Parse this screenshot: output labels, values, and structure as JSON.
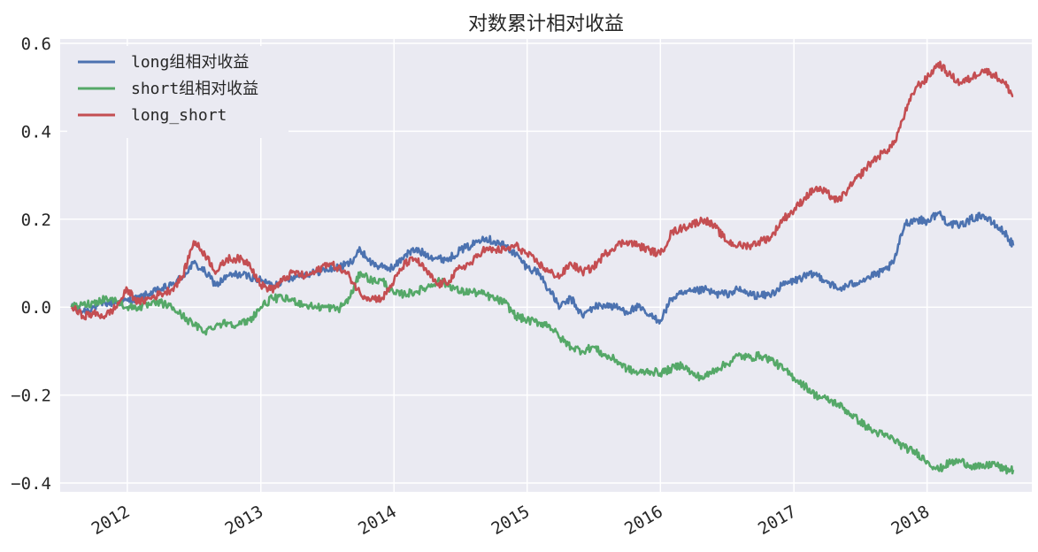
{
  "chart_data": {
    "type": "line",
    "title": "对数累计相对收益",
    "xlabel": "",
    "ylabel": "",
    "x_range": [
      "2011-07-01",
      "2018-10-15"
    ],
    "ylim": [
      -0.42,
      0.61
    ],
    "yticks": [
      0.6,
      0.4,
      0.2,
      0.0,
      -0.2,
      -0.4
    ],
    "ytick_labels": [
      "0.6",
      "0.4",
      "0.2",
      "0.0",
      "−0.2",
      "−0.4"
    ],
    "xtick_labels": [
      "2012",
      "2013",
      "2014",
      "2015",
      "2016",
      "2017",
      "2018"
    ],
    "xtick_dates": [
      "2012-01-01",
      "2013-01-01",
      "2014-01-01",
      "2015-01-01",
      "2016-01-01",
      "2017-01-01",
      "2018-01-01"
    ],
    "grid": true,
    "legend_position": "top-left",
    "series": [
      {
        "name": "long组相对收益",
        "color": "#4c72b0",
        "points": [
          [
            "2011-08-01",
            0.0
          ],
          [
            "2011-09-01",
            -0.01
          ],
          [
            "2011-10-01",
            0.0
          ],
          [
            "2011-11-01",
            0.01
          ],
          [
            "2011-12-01",
            0.01
          ],
          [
            "2012-01-01",
            0.015
          ],
          [
            "2012-02-01",
            0.02
          ],
          [
            "2012-03-01",
            0.03
          ],
          [
            "2012-04-01",
            0.04
          ],
          [
            "2012-05-01",
            0.05
          ],
          [
            "2012-06-01",
            0.07
          ],
          [
            "2012-07-01",
            0.1
          ],
          [
            "2012-08-01",
            0.08
          ],
          [
            "2012-09-01",
            0.05
          ],
          [
            "2012-10-01",
            0.07
          ],
          [
            "2012-11-01",
            0.075
          ],
          [
            "2012-12-01",
            0.07
          ],
          [
            "2013-01-01",
            0.06
          ],
          [
            "2013-02-01",
            0.05
          ],
          [
            "2013-03-01",
            0.06
          ],
          [
            "2013-04-01",
            0.07
          ],
          [
            "2013-05-01",
            0.075
          ],
          [
            "2013-06-01",
            0.08
          ],
          [
            "2013-07-01",
            0.085
          ],
          [
            "2013-08-01",
            0.09
          ],
          [
            "2013-09-01",
            0.1
          ],
          [
            "2013-10-01",
            0.13
          ],
          [
            "2013-11-01",
            0.1
          ],
          [
            "2013-12-01",
            0.09
          ],
          [
            "2014-01-01",
            0.09
          ],
          [
            "2014-02-01",
            0.12
          ],
          [
            "2014-03-01",
            0.13
          ],
          [
            "2014-04-01",
            0.12
          ],
          [
            "2014-05-01",
            0.11
          ],
          [
            "2014-06-01",
            0.11
          ],
          [
            "2014-07-01",
            0.13
          ],
          [
            "2014-08-01",
            0.14
          ],
          [
            "2014-09-01",
            0.16
          ],
          [
            "2014-10-01",
            0.15
          ],
          [
            "2014-11-01",
            0.14
          ],
          [
            "2014-12-01",
            0.12
          ],
          [
            "2015-01-01",
            0.09
          ],
          [
            "2015-02-01",
            0.08
          ],
          [
            "2015-03-01",
            0.04
          ],
          [
            "2015-04-01",
            0.0
          ],
          [
            "2015-05-01",
            0.02
          ],
          [
            "2015-06-01",
            -0.02
          ],
          [
            "2015-07-01",
            0.0
          ],
          [
            "2015-08-01",
            0.005
          ],
          [
            "2015-09-01",
            0.0
          ],
          [
            "2015-10-01",
            -0.01
          ],
          [
            "2015-11-01",
            0.0
          ],
          [
            "2015-12-01",
            -0.02
          ],
          [
            "2016-01-01",
            -0.03
          ],
          [
            "2016-02-01",
            0.02
          ],
          [
            "2016-03-01",
            0.03
          ],
          [
            "2016-04-01",
            0.035
          ],
          [
            "2016-05-01",
            0.04
          ],
          [
            "2016-06-01",
            0.03
          ],
          [
            "2016-07-01",
            0.03
          ],
          [
            "2016-08-01",
            0.04
          ],
          [
            "2016-09-01",
            0.03
          ],
          [
            "2016-10-01",
            0.025
          ],
          [
            "2016-11-01",
            0.03
          ],
          [
            "2016-12-01",
            0.05
          ],
          [
            "2017-01-01",
            0.06
          ],
          [
            "2017-02-01",
            0.07
          ],
          [
            "2017-03-01",
            0.075
          ],
          [
            "2017-04-01",
            0.06
          ],
          [
            "2017-05-01",
            0.04
          ],
          [
            "2017-06-01",
            0.05
          ],
          [
            "2017-07-01",
            0.06
          ],
          [
            "2017-08-01",
            0.07
          ],
          [
            "2017-09-01",
            0.08
          ],
          [
            "2017-10-01",
            0.1
          ],
          [
            "2017-11-01",
            0.19
          ],
          [
            "2017-12-01",
            0.2
          ],
          [
            "2018-01-01",
            0.195
          ],
          [
            "2018-02-01",
            0.215
          ],
          [
            "2018-03-01",
            0.19
          ],
          [
            "2018-04-01",
            0.185
          ],
          [
            "2018-05-01",
            0.2
          ],
          [
            "2018-06-01",
            0.21
          ],
          [
            "2018-07-01",
            0.19
          ],
          [
            "2018-08-01",
            0.17
          ],
          [
            "2018-08-25",
            0.14
          ]
        ]
      },
      {
        "name": "short组相对收益",
        "color": "#55a868",
        "points": [
          [
            "2011-08-01",
            0.0
          ],
          [
            "2011-09-01",
            0.005
          ],
          [
            "2011-10-01",
            0.01
          ],
          [
            "2011-11-01",
            0.02
          ],
          [
            "2011-12-01",
            0.015
          ],
          [
            "2012-01-01",
            0.0
          ],
          [
            "2012-02-01",
            0.0
          ],
          [
            "2012-03-01",
            0.005
          ],
          [
            "2012-04-01",
            0.01
          ],
          [
            "2012-05-01",
            0.0
          ],
          [
            "2012-06-01",
            -0.02
          ],
          [
            "2012-07-01",
            -0.04
          ],
          [
            "2012-08-01",
            -0.055
          ],
          [
            "2012-09-01",
            -0.04
          ],
          [
            "2012-10-01",
            -0.035
          ],
          [
            "2012-11-01",
            -0.04
          ],
          [
            "2012-12-01",
            -0.03
          ],
          [
            "2013-01-01",
            0.0
          ],
          [
            "2013-02-01",
            0.02
          ],
          [
            "2013-03-01",
            0.02
          ],
          [
            "2013-04-01",
            0.015
          ],
          [
            "2013-05-01",
            0.005
          ],
          [
            "2013-06-01",
            0.0
          ],
          [
            "2013-07-01",
            0.0
          ],
          [
            "2013-08-01",
            -0.005
          ],
          [
            "2013-09-01",
            0.02
          ],
          [
            "2013-10-01",
            0.08
          ],
          [
            "2013-11-01",
            0.06
          ],
          [
            "2013-12-01",
            0.06
          ],
          [
            "2014-01-01",
            0.03
          ],
          [
            "2014-02-01",
            0.03
          ],
          [
            "2014-03-01",
            0.035
          ],
          [
            "2014-04-01",
            0.045
          ],
          [
            "2014-05-01",
            0.06
          ],
          [
            "2014-06-01",
            0.05
          ],
          [
            "2014-07-01",
            0.035
          ],
          [
            "2014-08-01",
            0.035
          ],
          [
            "2014-09-01",
            0.03
          ],
          [
            "2014-10-01",
            0.02
          ],
          [
            "2014-11-01",
            0.01
          ],
          [
            "2014-12-01",
            -0.02
          ],
          [
            "2015-01-01",
            -0.03
          ],
          [
            "2015-02-01",
            -0.035
          ],
          [
            "2015-03-01",
            -0.04
          ],
          [
            "2015-04-01",
            -0.07
          ],
          [
            "2015-05-01",
            -0.09
          ],
          [
            "2015-06-01",
            -0.1
          ],
          [
            "2015-07-01",
            -0.09
          ],
          [
            "2015-08-01",
            -0.11
          ],
          [
            "2015-09-01",
            -0.12
          ],
          [
            "2015-10-01",
            -0.14
          ],
          [
            "2015-11-01",
            -0.15
          ],
          [
            "2015-12-01",
            -0.145
          ],
          [
            "2016-01-01",
            -0.15
          ],
          [
            "2016-02-01",
            -0.14
          ],
          [
            "2016-03-01",
            -0.13
          ],
          [
            "2016-04-01",
            -0.155
          ],
          [
            "2016-05-01",
            -0.16
          ],
          [
            "2016-06-01",
            -0.14
          ],
          [
            "2016-07-01",
            -0.13
          ],
          [
            "2016-08-01",
            -0.11
          ],
          [
            "2016-09-01",
            -0.115
          ],
          [
            "2016-10-01",
            -0.11
          ],
          [
            "2016-11-01",
            -0.12
          ],
          [
            "2016-12-01",
            -0.14
          ],
          [
            "2017-01-01",
            -0.16
          ],
          [
            "2017-02-01",
            -0.18
          ],
          [
            "2017-03-01",
            -0.2
          ],
          [
            "2017-04-01",
            -0.21
          ],
          [
            "2017-05-01",
            -0.22
          ],
          [
            "2017-06-01",
            -0.24
          ],
          [
            "2017-07-01",
            -0.26
          ],
          [
            "2017-08-01",
            -0.28
          ],
          [
            "2017-09-01",
            -0.29
          ],
          [
            "2017-10-01",
            -0.3
          ],
          [
            "2017-11-01",
            -0.32
          ],
          [
            "2017-12-01",
            -0.33
          ],
          [
            "2018-01-01",
            -0.35
          ],
          [
            "2018-02-01",
            -0.37
          ],
          [
            "2018-03-01",
            -0.355
          ],
          [
            "2018-04-01",
            -0.35
          ],
          [
            "2018-05-01",
            -0.36
          ],
          [
            "2018-06-01",
            -0.365
          ],
          [
            "2018-07-01",
            -0.355
          ],
          [
            "2018-08-01",
            -0.37
          ],
          [
            "2018-08-25",
            -0.37
          ]
        ]
      },
      {
        "name": "long_short",
        "color": "#c44e52",
        "points": [
          [
            "2011-08-01",
            0.0
          ],
          [
            "2011-09-01",
            -0.02
          ],
          [
            "2011-10-01",
            -0.015
          ],
          [
            "2011-11-01",
            -0.02
          ],
          [
            "2011-12-01",
            0.0
          ],
          [
            "2012-01-01",
            0.04
          ],
          [
            "2012-02-01",
            0.01
          ],
          [
            "2012-03-01",
            0.02
          ],
          [
            "2012-04-01",
            0.03
          ],
          [
            "2012-05-01",
            0.04
          ],
          [
            "2012-06-01",
            0.07
          ],
          [
            "2012-07-01",
            0.15
          ],
          [
            "2012-08-01",
            0.12
          ],
          [
            "2012-09-01",
            0.08
          ],
          [
            "2012-10-01",
            0.11
          ],
          [
            "2012-11-01",
            0.11
          ],
          [
            "2012-12-01",
            0.1
          ],
          [
            "2013-01-01",
            0.05
          ],
          [
            "2013-02-01",
            0.04
          ],
          [
            "2013-03-01",
            0.06
          ],
          [
            "2013-04-01",
            0.08
          ],
          [
            "2013-05-01",
            0.07
          ],
          [
            "2013-06-01",
            0.08
          ],
          [
            "2013-07-01",
            0.1
          ],
          [
            "2013-08-01",
            0.09
          ],
          [
            "2013-09-01",
            0.07
          ],
          [
            "2013-10-01",
            0.03
          ],
          [
            "2013-11-01",
            0.02
          ],
          [
            "2013-12-01",
            0.02
          ],
          [
            "2014-01-01",
            0.06
          ],
          [
            "2014-02-01",
            0.1
          ],
          [
            "2014-03-01",
            0.11
          ],
          [
            "2014-04-01",
            0.08
          ],
          [
            "2014-05-01",
            0.05
          ],
          [
            "2014-06-01",
            0.06
          ],
          [
            "2014-07-01",
            0.09
          ],
          [
            "2014-08-01",
            0.1
          ],
          [
            "2014-09-01",
            0.13
          ],
          [
            "2014-10-01",
            0.13
          ],
          [
            "2014-11-01",
            0.13
          ],
          [
            "2014-12-01",
            0.14
          ],
          [
            "2015-01-01",
            0.12
          ],
          [
            "2015-02-01",
            0.1
          ],
          [
            "2015-03-01",
            0.08
          ],
          [
            "2015-04-01",
            0.07
          ],
          [
            "2015-05-01",
            0.1
          ],
          [
            "2015-06-01",
            0.08
          ],
          [
            "2015-07-01",
            0.09
          ],
          [
            "2015-08-01",
            0.12
          ],
          [
            "2015-09-01",
            0.14
          ],
          [
            "2015-10-01",
            0.15
          ],
          [
            "2015-11-01",
            0.14
          ],
          [
            "2015-12-01",
            0.13
          ],
          [
            "2016-01-01",
            0.12
          ],
          [
            "2016-02-01",
            0.17
          ],
          [
            "2016-03-01",
            0.18
          ],
          [
            "2016-04-01",
            0.19
          ],
          [
            "2016-05-01",
            0.2
          ],
          [
            "2016-06-01",
            0.18
          ],
          [
            "2016-07-01",
            0.15
          ],
          [
            "2016-08-01",
            0.14
          ],
          [
            "2016-09-01",
            0.14
          ],
          [
            "2016-10-01",
            0.15
          ],
          [
            "2016-11-01",
            0.16
          ],
          [
            "2016-12-01",
            0.2
          ],
          [
            "2017-01-01",
            0.22
          ],
          [
            "2017-02-01",
            0.25
          ],
          [
            "2017-03-01",
            0.27
          ],
          [
            "2017-04-01",
            0.26
          ],
          [
            "2017-05-01",
            0.24
          ],
          [
            "2017-06-01",
            0.27
          ],
          [
            "2017-07-01",
            0.3
          ],
          [
            "2017-08-01",
            0.33
          ],
          [
            "2017-09-01",
            0.35
          ],
          [
            "2017-10-01",
            0.37
          ],
          [
            "2017-11-01",
            0.44
          ],
          [
            "2017-12-01",
            0.5
          ],
          [
            "2018-01-01",
            0.52
          ],
          [
            "2018-02-01",
            0.555
          ],
          [
            "2018-03-01",
            0.53
          ],
          [
            "2018-04-01",
            0.51
          ],
          [
            "2018-05-01",
            0.52
          ],
          [
            "2018-06-01",
            0.54
          ],
          [
            "2018-07-01",
            0.53
          ],
          [
            "2018-08-01",
            0.51
          ],
          [
            "2018-08-25",
            0.48
          ]
        ]
      }
    ]
  }
}
